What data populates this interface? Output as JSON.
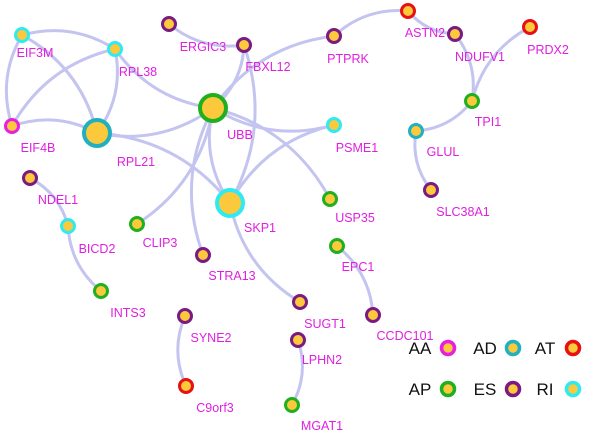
{
  "colors": {
    "node_fill": "#fcc83c",
    "edge": "#c4c4f0",
    "label": "#e020e0",
    "AA": "#e81ee0",
    "AD": "#20b0c0",
    "AT": "#e81010",
    "AP": "#1fb01f",
    "ES": "#7a1a82",
    "RI": "#30eaf2"
  },
  "nodes": [
    {
      "id": "EIF3M",
      "type": "RI"
    },
    {
      "id": "RPL38",
      "type": "RI"
    },
    {
      "id": "EIF4B",
      "type": "AA"
    },
    {
      "id": "RPL21",
      "type": "AD",
      "hub": true
    },
    {
      "id": "ERGIC3",
      "type": "ES"
    },
    {
      "id": "FBXL12",
      "type": "ES"
    },
    {
      "id": "UBB",
      "type": "AP",
      "hub": true
    },
    {
      "id": "PTPRK",
      "type": "ES"
    },
    {
      "id": "ASTN2",
      "type": "AT"
    },
    {
      "id": "NDUFV1",
      "type": "ES"
    },
    {
      "id": "PRDX2",
      "type": "AT"
    },
    {
      "id": "TPI1",
      "type": "AP"
    },
    {
      "id": "GLUL",
      "type": "AD"
    },
    {
      "id": "SLC38A1",
      "type": "ES"
    },
    {
      "id": "PSME1",
      "type": "RI"
    },
    {
      "id": "SKP1",
      "type": "RI",
      "hub": true
    },
    {
      "id": "USP35",
      "type": "AP"
    },
    {
      "id": "NDEL1",
      "type": "ES"
    },
    {
      "id": "BICD2",
      "type": "RI"
    },
    {
      "id": "CLIP3",
      "type": "AP"
    },
    {
      "id": "STRA13",
      "type": "ES"
    },
    {
      "id": "EPC1",
      "type": "AP"
    },
    {
      "id": "INTS3",
      "type": "AP"
    },
    {
      "id": "SUGT1",
      "type": "ES"
    },
    {
      "id": "CCDC101",
      "type": "ES"
    },
    {
      "id": "SYNE2",
      "type": "ES"
    },
    {
      "id": "LPHN2",
      "type": "ES"
    },
    {
      "id": "C9orf3",
      "type": "AT"
    },
    {
      "id": "MGAT1",
      "type": "AP"
    }
  ],
  "edges": [
    [
      "EIF3M",
      "RPL38"
    ],
    [
      "EIF3M",
      "EIF4B"
    ],
    [
      "EIF3M",
      "RPL21"
    ],
    [
      "RPL38",
      "EIF4B"
    ],
    [
      "RPL38",
      "RPL21"
    ],
    [
      "RPL38",
      "UBB"
    ],
    [
      "EIF4B",
      "RPL21"
    ],
    [
      "RPL21",
      "UBB"
    ],
    [
      "RPL21",
      "SKP1"
    ],
    [
      "ERGIC3",
      "FBXL12"
    ],
    [
      "FBXL12",
      "SKP1"
    ],
    [
      "UBB",
      "FBXL12"
    ],
    [
      "UBB",
      "PTPRK"
    ],
    [
      "UBB",
      "PSME1"
    ],
    [
      "UBB",
      "USP35"
    ],
    [
      "UBB",
      "SKP1"
    ],
    [
      "UBB",
      "CLIP3"
    ],
    [
      "UBB",
      "STRA13"
    ],
    [
      "SKP1",
      "PSME1"
    ],
    [
      "SKP1",
      "SUGT1"
    ],
    [
      "PTPRK",
      "ASTN2"
    ],
    [
      "ASTN2",
      "NDUFV1"
    ],
    [
      "NDUFV1",
      "TPI1"
    ],
    [
      "PRDX2",
      "TPI1"
    ],
    [
      "TPI1",
      "GLUL"
    ],
    [
      "GLUL",
      "SLC38A1"
    ],
    [
      "NDEL1",
      "BICD2"
    ],
    [
      "BICD2",
      "INTS3"
    ],
    [
      "EPC1",
      "CCDC101"
    ],
    [
      "SYNE2",
      "C9orf3"
    ],
    [
      "LPHN2",
      "MGAT1"
    ]
  ],
  "legend": [
    {
      "label": "AA",
      "type": "AA"
    },
    {
      "label": "AD",
      "type": "AD"
    },
    {
      "label": "AT",
      "type": "AT"
    },
    {
      "label": "AP",
      "type": "AP"
    },
    {
      "label": "ES",
      "type": "ES"
    },
    {
      "label": "RI",
      "type": "RI"
    }
  ]
}
